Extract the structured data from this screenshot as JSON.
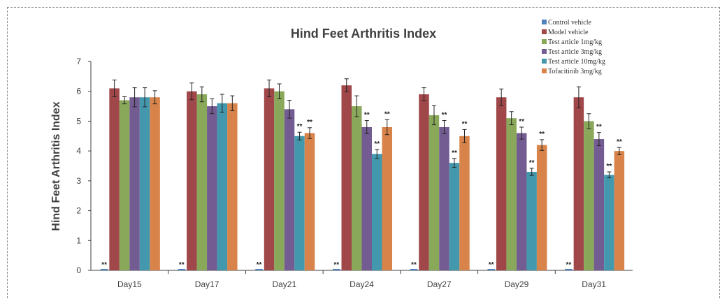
{
  "chart_data": {
    "type": "bar",
    "title": "Hind Feet Arthritis Index",
    "ylabel": "Hind Feet Arthritis Index",
    "xlabel": "",
    "ylim": [
      0,
      7
    ],
    "yticks": [
      0,
      1,
      2,
      3,
      4,
      5,
      6,
      7
    ],
    "grid": false,
    "legend_position": "top-right",
    "categories": [
      "Day15",
      "Day17",
      "Day21",
      "Day24",
      "Day27",
      "Day29",
      "Day31"
    ],
    "significance_marker": "**",
    "series": [
      {
        "name": "Control vehicle",
        "color": "#4f81bd",
        "values": [
          0,
          0,
          0,
          0,
          0,
          0,
          0
        ],
        "errors": [
          0,
          0,
          0,
          0,
          0,
          0,
          0
        ],
        "significant": [
          true,
          true,
          true,
          true,
          true,
          true,
          true
        ]
      },
      {
        "name": "Model vehicle",
        "color": "#a0474a",
        "values": [
          6.1,
          6.0,
          6.1,
          6.2,
          5.9,
          5.8,
          5.8
        ],
        "errors": [
          0.28,
          0.28,
          0.28,
          0.22,
          0.22,
          0.28,
          0.35
        ],
        "significant": [
          false,
          false,
          false,
          false,
          false,
          false,
          false
        ]
      },
      {
        "name": "Test article 1mg/kg",
        "color": "#8aa85a",
        "values": [
          5.7,
          5.9,
          6.0,
          5.5,
          5.2,
          5.1,
          5.0
        ],
        "errors": [
          0.12,
          0.25,
          0.25,
          0.35,
          0.32,
          0.22,
          0.25
        ],
        "significant": [
          false,
          false,
          false,
          false,
          false,
          false,
          false
        ]
      },
      {
        "name": "Test article 3mg/kg",
        "color": "#735c92",
        "values": [
          5.8,
          5.5,
          5.4,
          4.8,
          4.8,
          4.6,
          4.4
        ],
        "errors": [
          0.32,
          0.25,
          0.3,
          0.22,
          0.22,
          0.2,
          0.22
        ],
        "significant": [
          false,
          false,
          false,
          true,
          true,
          true,
          true
        ]
      },
      {
        "name": "Test article 10mg/kg",
        "color": "#4398ad",
        "values": [
          5.8,
          5.6,
          4.5,
          3.9,
          3.6,
          3.3,
          3.2
        ],
        "errors": [
          0.32,
          0.3,
          0.13,
          0.15,
          0.15,
          0.12,
          0.1
        ],
        "significant": [
          false,
          false,
          true,
          true,
          true,
          true,
          true
        ]
      },
      {
        "name": "Tofacitinib 3mg/kg",
        "color": "#d8834a",
        "values": [
          5.8,
          5.6,
          4.6,
          4.8,
          4.5,
          4.2,
          4.0
        ],
        "errors": [
          0.22,
          0.25,
          0.18,
          0.25,
          0.22,
          0.18,
          0.12
        ],
        "significant": [
          false,
          false,
          true,
          true,
          true,
          true,
          true
        ]
      }
    ]
  }
}
